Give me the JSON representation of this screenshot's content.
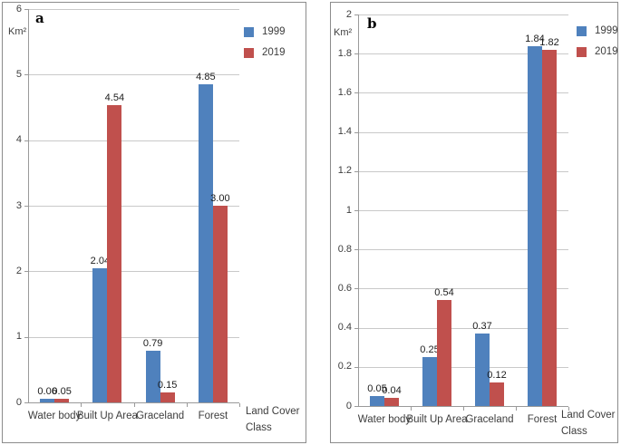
{
  "figure_note": "Two-panel bar chart comparing land cover area (Km²) in 1999 vs 2019",
  "chart_data": [
    {
      "type": "bar",
      "panel_label": "a",
      "ylabel": "Km²",
      "xlabel": "Land Cover Class",
      "ylim": [
        0,
        6
      ],
      "y_ticks": [
        "0",
        "1",
        "2",
        "3",
        "4",
        "5",
        "6"
      ],
      "grid": true,
      "legend_position": "top-right",
      "categories": [
        "Water body",
        "Built Up Area",
        "Graceland",
        "Forest"
      ],
      "series": [
        {
          "name": "1999",
          "color": "#4F81BD",
          "values": [
            0.06,
            2.04,
            0.79,
            4.85
          ],
          "labels": [
            "0.06",
            "2.04",
            "0.79",
            "4.85"
          ]
        },
        {
          "name": "2019",
          "color": "#C0504D",
          "values": [
            0.05,
            4.54,
            0.15,
            3.0
          ],
          "labels": [
            "0.05",
            "4.54",
            "0.15",
            "3.00"
          ]
        }
      ]
    },
    {
      "type": "bar",
      "panel_label": "b",
      "ylabel": "Km²",
      "xlabel": "Land Cover Class",
      "ylim": [
        0,
        2
      ],
      "y_ticks": [
        "0",
        "0.2",
        "0.4",
        "0.6",
        "0.8",
        "1",
        "1.2",
        "1.4",
        "1.6",
        "1.8",
        "2"
      ],
      "grid": true,
      "legend_position": "top-right",
      "categories": [
        "Water body",
        "Built Up Area",
        "Graceland",
        "Forest"
      ],
      "series": [
        {
          "name": "1999",
          "color": "#4F81BD",
          "values": [
            0.05,
            0.25,
            0.37,
            1.84
          ],
          "labels": [
            "0.05",
            "0.25",
            "0.37",
            "1.84"
          ]
        },
        {
          "name": "2019",
          "color": "#C0504D",
          "values": [
            0.04,
            0.54,
            0.12,
            1.82
          ],
          "labels": [
            "0.04",
            "0.54",
            "0.12",
            "1.82"
          ]
        }
      ]
    }
  ],
  "colors": {
    "series_1999": "#4F81BD",
    "series_2019": "#C0504D",
    "gridline": "#c9c9c9",
    "axis": "#9a9a9a"
  }
}
